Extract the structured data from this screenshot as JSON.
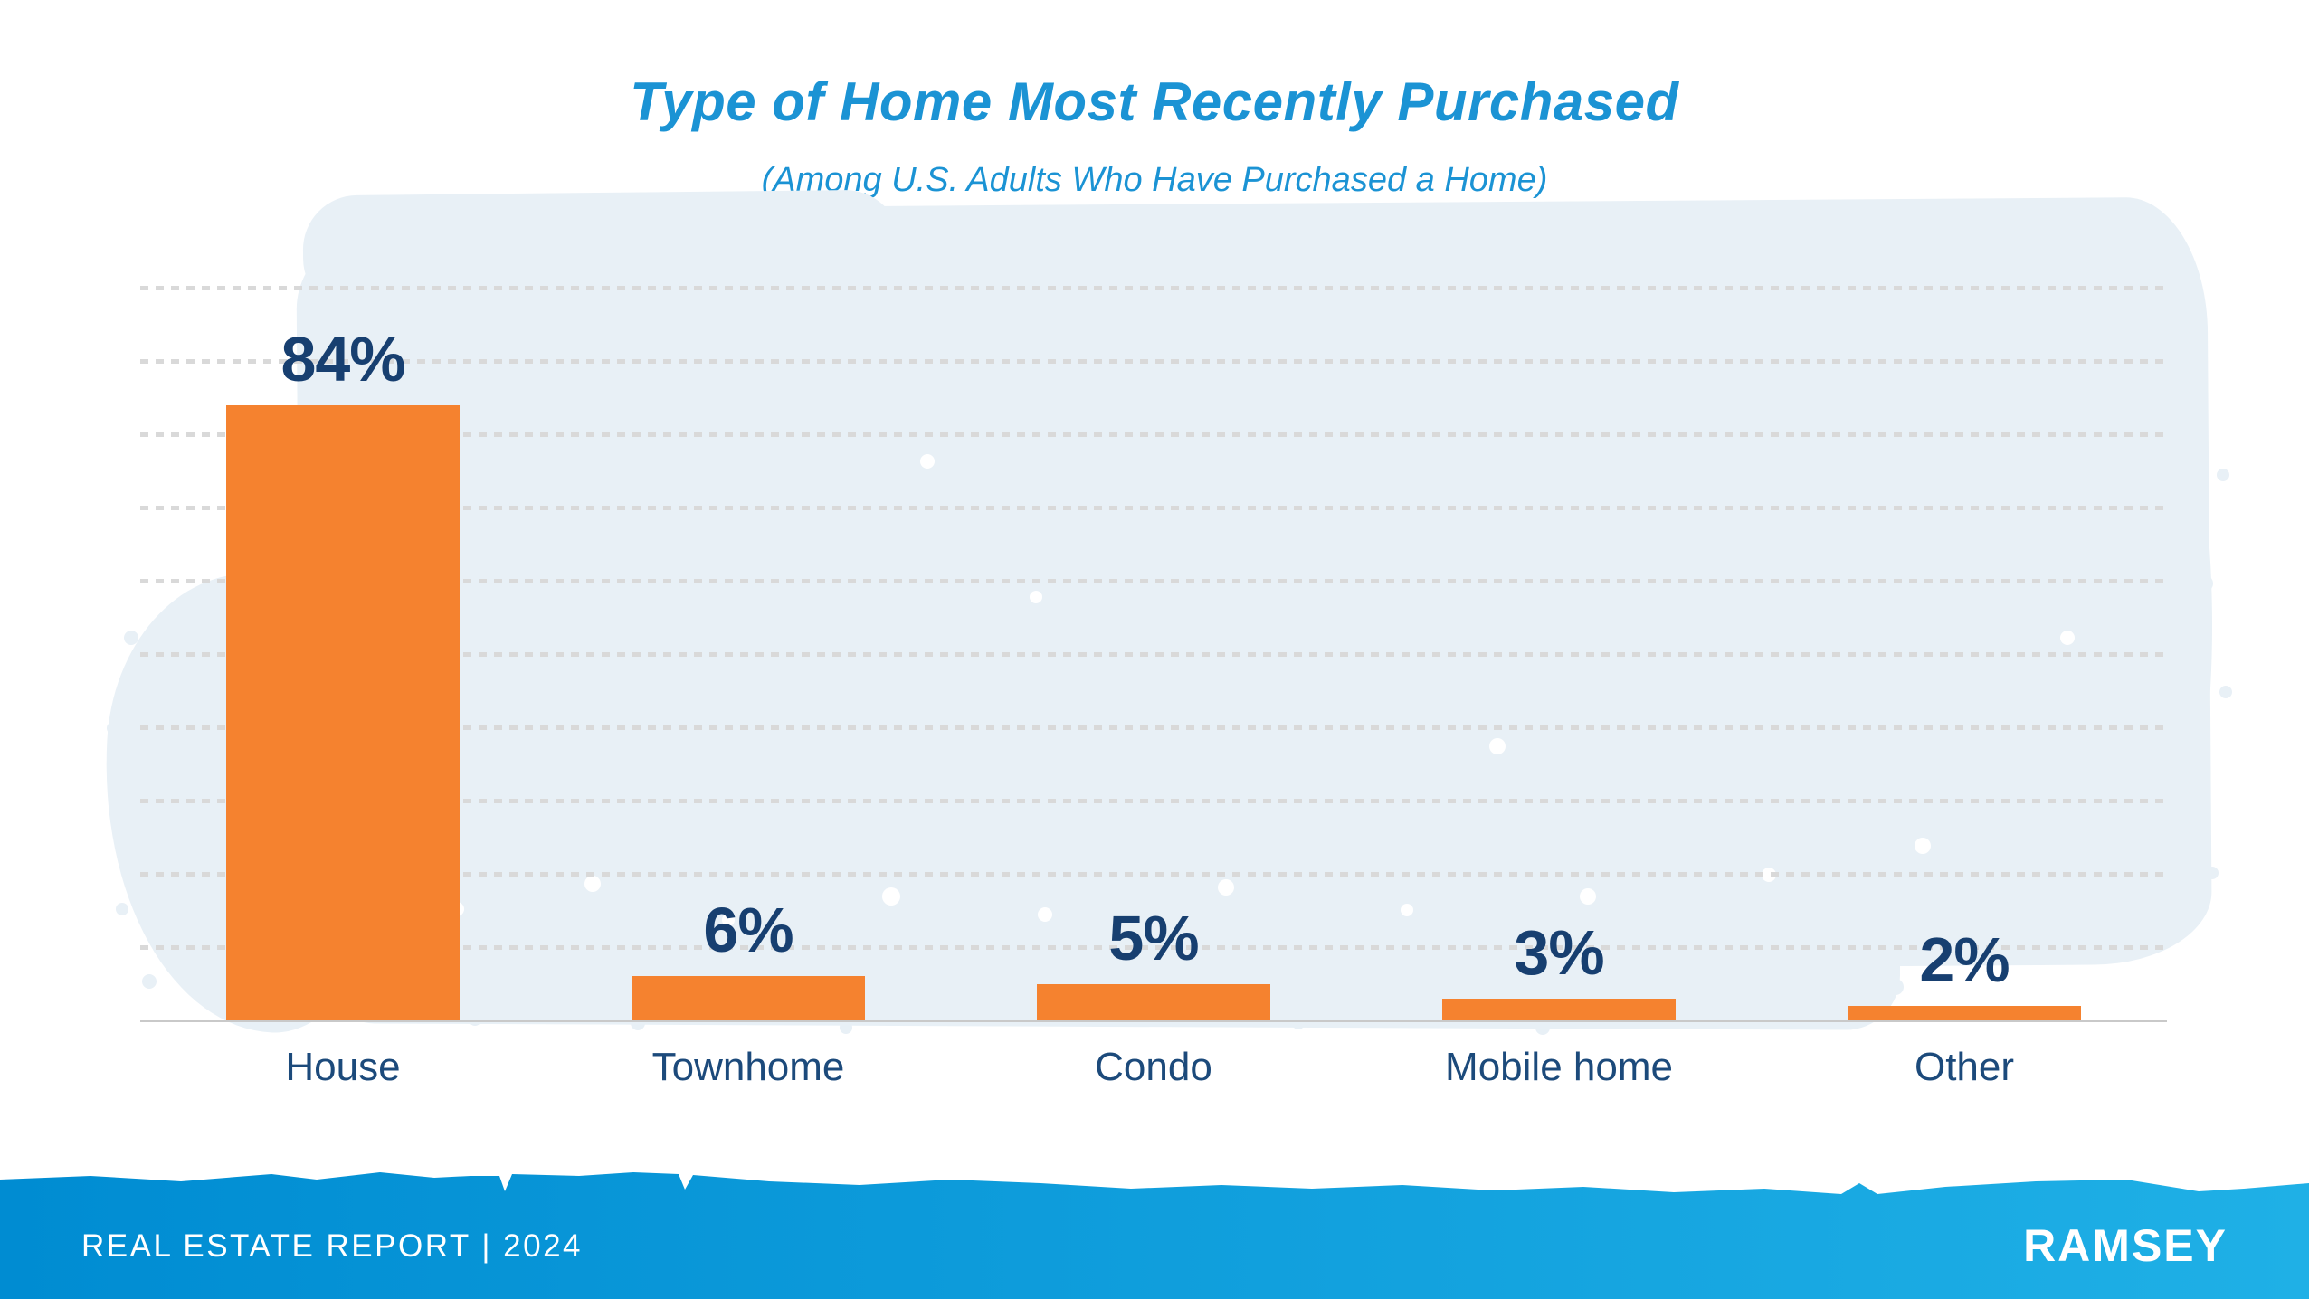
{
  "title": "Type of Home Most Recently Purchased",
  "subtitle": "(Among U.S. Adults Who Have Purchased a Home)",
  "chart_data": {
    "type": "bar",
    "categories": [
      "House",
      "Townhome",
      "Condo",
      "Mobile home",
      "Other"
    ],
    "values": [
      84,
      6,
      5,
      3,
      2
    ],
    "value_labels": [
      "84%",
      "6%",
      "5%",
      "3%",
      "2%"
    ],
    "title": "Type of Home Most Recently Purchased",
    "subtitle": "(Among U.S. Adults Who Have Purchased a Home)",
    "xlabel": "",
    "ylabel": "",
    "ylim": [
      0,
      100
    ],
    "gridline_step": 10,
    "grid": "horizontal-dotted",
    "legend": "none"
  },
  "footer": {
    "report_label": "REAL ESTATE REPORT | 2024",
    "brand": "RAMSEY"
  },
  "colors": {
    "bar_orange": "#F5822F",
    "value_navy": "#173F70",
    "category_navy": "#1C4A7B",
    "title_blue": "#1B93D4",
    "wash_blue": "#E8F0F6",
    "gridline_gray": "#D9D9D9",
    "axis_gray": "#C9C9C9",
    "footer_blue_left": "#008CD2",
    "footer_blue_right": "#1FB0E6"
  }
}
